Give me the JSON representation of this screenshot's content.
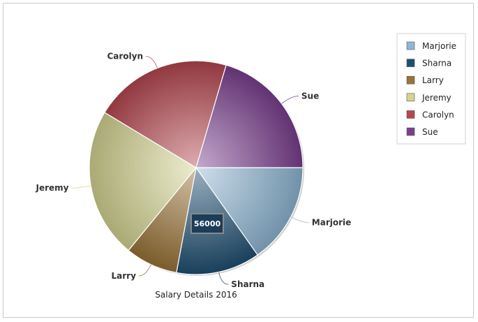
{
  "chart_data": {
    "type": "pie",
    "title": "Salary Details 2016",
    "legend_position": "right",
    "slices": [
      {
        "label": "Marjorie",
        "value": 67000,
        "color": "#8fb7d4"
      },
      {
        "label": "Sharna",
        "value": 56000,
        "color": "#1f4f72"
      },
      {
        "label": "Larry",
        "value": 35000,
        "color": "#9a7336"
      },
      {
        "label": "Jeremy",
        "value": 100000,
        "color": "#d4d592"
      },
      {
        "label": "Carolyn",
        "value": 92000,
        "color": "#b5464f"
      },
      {
        "label": "Sue",
        "value": 90000,
        "color": "#7b3f8f"
      }
    ],
    "tooltip": {
      "slice": "Sharna",
      "text": "56000"
    }
  }
}
